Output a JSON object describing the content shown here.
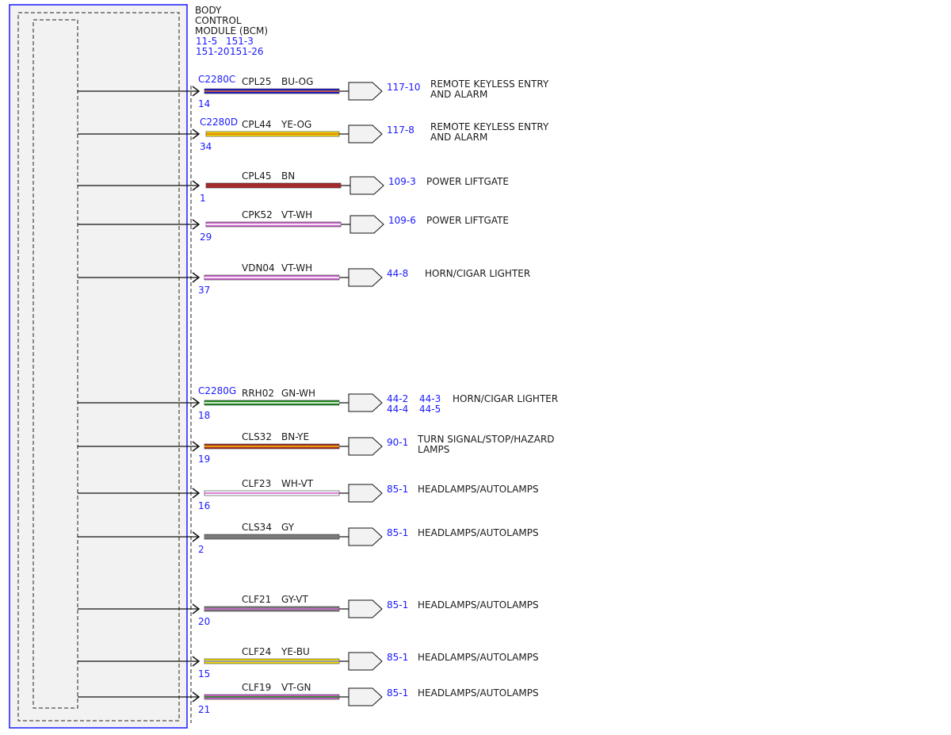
{
  "module": {
    "title_lines": [
      "BODY",
      "CONTROL",
      "MODULE (BCM)"
    ],
    "ref_rows": [
      [
        "11-5",
        "151-3"
      ],
      [
        "151-20",
        "151-26"
      ]
    ]
  },
  "colors": {
    "frame": "#1a1aff",
    "link_text": "#1a1aff",
    "text": "#1a1a1a",
    "module_fill": "#f2f2f2",
    "connector_fill": "#f2f2f2"
  },
  "circuits": [
    {
      "connector": "C2280C",
      "pin": "14",
      "circuit": "CPL25",
      "wire_color": "BU-OG",
      "stripe": [
        "#1a1acc",
        "#e07020"
      ],
      "refs": [
        "117-10"
      ],
      "dest_lines": [
        "REMOTE KEYLESS ENTRY",
        "AND ALARM"
      ]
    },
    {
      "connector": "C2280D",
      "pin": "34",
      "circuit": "CPL44",
      "wire_color": "YE-OG",
      "stripe": [
        "#f2e000",
        "#e07020"
      ],
      "refs": [
        "117-8"
      ],
      "dest_lines": [
        "REMOTE KEYLESS ENTRY",
        "AND ALARM"
      ]
    },
    {
      "connector": "",
      "pin": "1",
      "circuit": "CPL45",
      "wire_color": "BN",
      "stripe": [
        "#a52a2a",
        "#a52a2a"
      ],
      "refs": [
        "109-3"
      ],
      "dest_lines": [
        "POWER LIFTGATE"
      ]
    },
    {
      "connector": "",
      "pin": "29",
      "circuit": "CPK52",
      "wire_color": "VT-WH",
      "stripe": [
        "#cc66cc",
        "#ffffff"
      ],
      "refs": [
        "109-6"
      ],
      "dest_lines": [
        "POWER LIFTGATE"
      ]
    },
    {
      "connector": "",
      "pin": "37",
      "circuit": "VDN04",
      "wire_color": "VT-WH",
      "stripe": [
        "#cc66cc",
        "#ffffff"
      ],
      "refs": [
        "44-8"
      ],
      "dest_lines": [
        "HORN/CIGAR LIGHTER"
      ]
    },
    {
      "connector": "C2280G",
      "pin": "18",
      "circuit": "RRH02",
      "wire_color": "GN-WH",
      "stripe": [
        "#1a8a1a",
        "#ffffff"
      ],
      "refs": [
        "44-2",
        "44-3",
        "44-4",
        "44-5"
      ],
      "dest_lines": [
        "HORN/CIGAR LIGHTER"
      ]
    },
    {
      "connector": "",
      "pin": "19",
      "circuit": "CLS32",
      "wire_color": "BN-YE",
      "stripe": [
        "#a52a2a",
        "#f2c000"
      ],
      "refs": [
        "90-1"
      ],
      "dest_lines": [
        "TURN SIGNAL/STOP/HAZARD",
        "LAMPS"
      ]
    },
    {
      "connector": "",
      "pin": "16",
      "circuit": "CLF23",
      "wire_color": "WH-VT",
      "stripe": [
        "#ffffff",
        "#cc66cc"
      ],
      "refs": [
        "85-1"
      ],
      "dest_lines": [
        "HEADLAMPS/AUTOLAMPS"
      ]
    },
    {
      "connector": "",
      "pin": "2",
      "circuit": "CLS34",
      "wire_color": "GY",
      "stripe": [
        "#7a7a7a",
        "#7a7a7a"
      ],
      "refs": [
        "85-1"
      ],
      "dest_lines": [
        "HEADLAMPS/AUTOLAMPS"
      ]
    },
    {
      "connector": "",
      "pin": "20",
      "circuit": "CLF21",
      "wire_color": "GY-VT",
      "stripe": [
        "#7a7a7a",
        "#cc66cc"
      ],
      "refs": [
        "85-1"
      ],
      "dest_lines": [
        "HEADLAMPS/AUTOLAMPS"
      ]
    },
    {
      "connector": "",
      "pin": "15",
      "circuit": "CLF24",
      "wire_color": "YE-BU",
      "stripe": [
        "#f2e000",
        "#8888dd"
      ],
      "refs": [
        "85-1"
      ],
      "dest_lines": [
        "HEADLAMPS/AUTOLAMPS"
      ]
    },
    {
      "connector": "",
      "pin": "21",
      "circuit": "CLF19",
      "wire_color": "VT-GN",
      "stripe": [
        "#cc66cc",
        "#1a8a1a"
      ],
      "refs": [
        "85-1"
      ],
      "dest_lines": [
        "HEADLAMPS/AUTOLAMPS"
      ]
    }
  ]
}
